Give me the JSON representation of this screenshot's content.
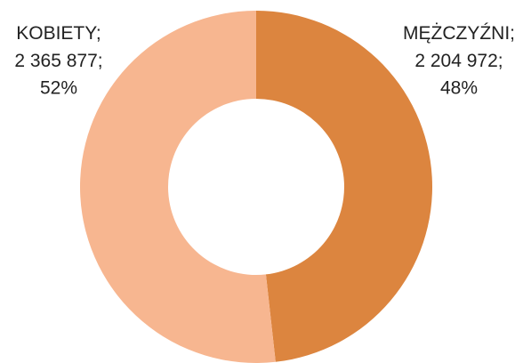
{
  "chart_data": {
    "type": "donut",
    "categories": [
      "MĘŻCZYŹNI",
      "KOBIETY"
    ],
    "values": [
      2204972,
      2365877
    ],
    "value_labels": [
      "2 204 972",
      "2 365 877"
    ],
    "percents": [
      48,
      52
    ],
    "percent_labels": [
      "48%",
      "52%"
    ],
    "label_separator": ";",
    "colors": [
      "#dc853f",
      "#f7b690"
    ]
  }
}
